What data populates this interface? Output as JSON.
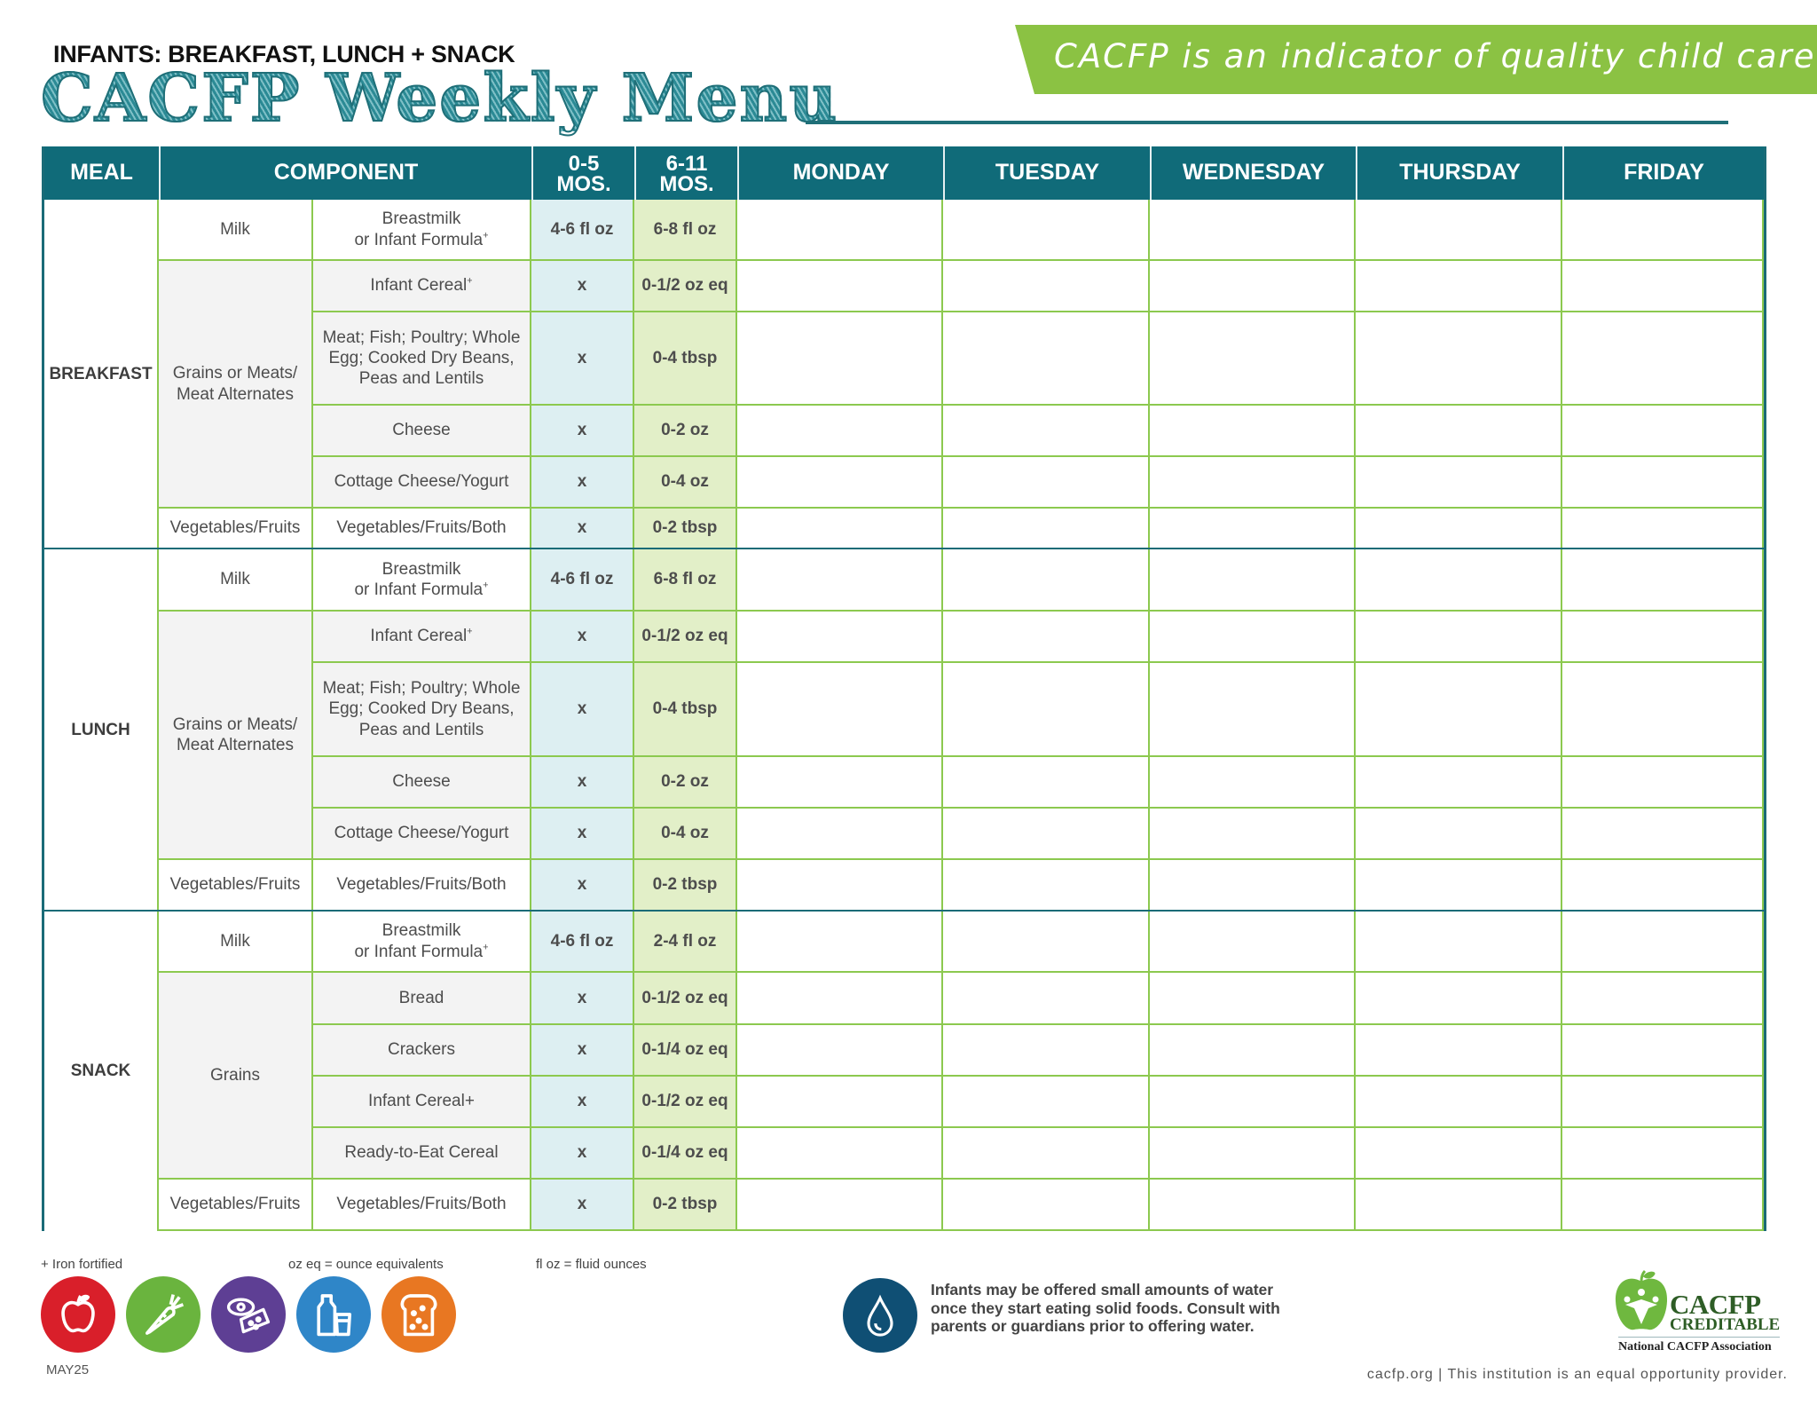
{
  "header": {
    "subtitle": "INFANTS: BREAKFAST, LUNCH + SNACK",
    "title": "CACFP Weekly Menu",
    "banner": "CACFP is an indicator of quality child care."
  },
  "colors": {
    "teal": "#106b79",
    "green_banner": "#8bc243",
    "grid_green": "#8cc94f",
    "age_0_5_bg": "#ddeff2",
    "age_6_11_bg": "#e2efc8"
  },
  "table": {
    "columns": {
      "meal": "MEAL",
      "component": "COMPONENT",
      "age1_top": "0-5",
      "age1_bottom": "MOS.",
      "age2_top": "6-11",
      "age2_bottom": "MOS.",
      "days": [
        "MONDAY",
        "TUESDAY",
        "WEDNESDAY",
        "THURSDAY",
        "FRIDAY"
      ]
    },
    "sections": [
      {
        "meal": "BREAKFAST",
        "groups": [
          {
            "label": "Milk",
            "items": [
              {
                "name": "Breastmilk",
                "name2": "or Infant Formula",
                "sup": "+",
                "age_0_5": "4-6 fl oz",
                "age_6_11": "6-8 fl oz"
              }
            ]
          },
          {
            "label": "Grains or Meats/ Meat Alternates",
            "items": [
              {
                "name": "Infant Cereal",
                "sup": "+",
                "age_0_5": "x",
                "age_6_11": "0-1/2 oz eq"
              },
              {
                "name": "Meat; Fish; Poultry; Whole Egg; Cooked Dry Beans, Peas and Lentils",
                "age_0_5": "x",
                "age_6_11": "0-4 tbsp"
              },
              {
                "name": "Cheese",
                "age_0_5": "x",
                "age_6_11": "0-2 oz"
              },
              {
                "name": "Cottage Cheese/Yogurt",
                "age_0_5": "x",
                "age_6_11": "0-4 oz"
              }
            ]
          },
          {
            "label": "Vegetables/Fruits",
            "items": [
              {
                "name": "Vegetables/Fruits/Both",
                "age_0_5": "x",
                "age_6_11": "0-2 tbsp"
              }
            ]
          }
        ]
      },
      {
        "meal": "LUNCH",
        "groups": [
          {
            "label": "Milk",
            "items": [
              {
                "name": "Breastmilk",
                "name2": "or Infant Formula",
                "sup": "+",
                "age_0_5": "4-6 fl oz",
                "age_6_11": "6-8 fl oz"
              }
            ]
          },
          {
            "label": "Grains or Meats/ Meat Alternates",
            "items": [
              {
                "name": "Infant Cereal",
                "sup": "+",
                "age_0_5": "x",
                "age_6_11": "0-1/2 oz eq"
              },
              {
                "name": "Meat; Fish; Poultry; Whole Egg; Cooked Dry Beans, Peas and Lentils",
                "age_0_5": "x",
                "age_6_11": "0-4 tbsp"
              },
              {
                "name": "Cheese",
                "age_0_5": "x",
                "age_6_11": "0-2 oz"
              },
              {
                "name": "Cottage Cheese/Yogurt",
                "age_0_5": "x",
                "age_6_11": "0-4 oz"
              }
            ]
          },
          {
            "label": "Vegetables/Fruits",
            "items": [
              {
                "name": "Vegetables/Fruits/Both",
                "age_0_5": "x",
                "age_6_11": "0-2 tbsp"
              }
            ]
          }
        ]
      },
      {
        "meal": "SNACK",
        "groups": [
          {
            "label": "Milk",
            "items": [
              {
                "name": "Breastmilk",
                "name2": "or Infant Formula",
                "sup": "+",
                "age_0_5": "4-6 fl oz",
                "age_6_11": "2-4 fl oz"
              }
            ]
          },
          {
            "label": "Grains",
            "items": [
              {
                "name": "Bread",
                "age_0_5": "x",
                "age_6_11": "0-1/2 oz eq"
              },
              {
                "name": "Crackers",
                "age_0_5": "x",
                "age_6_11": "0-1/4 oz eq"
              },
              {
                "name": "Infant Cereal+",
                "age_0_5": "x",
                "age_6_11": "0-1/2 oz eq"
              },
              {
                "name": "Ready-to-Eat Cereal",
                "age_0_5": "x",
                "age_6_11": "0-1/4 oz eq"
              }
            ]
          },
          {
            "label": "Vegetables/Fruits",
            "items": [
              {
                "name": "Vegetables/Fruits/Both",
                "age_0_5": "x",
                "age_6_11": "0-2 tbsp"
              }
            ]
          }
        ]
      }
    ]
  },
  "footer": {
    "legend_iron": "+ Iron fortified",
    "legend_oz": "oz eq = ounce equivalents",
    "legend_floz": "fl oz = fluid ounces",
    "food_icons": [
      "apple-icon",
      "carrot-icon",
      "meat-cheese-icon",
      "milk-icon",
      "bread-icon"
    ],
    "version": "MAY25",
    "water_note": "Infants may be offered small amounts of water once they start eating solid foods. Consult with parents or guardians prior to offering water.",
    "logo_main": "CACFP",
    "logo_sub": "CREDITABLE",
    "logo_org": "National CACFP Association",
    "disclaimer": "cacfp.org | This institution is an equal opportunity provider."
  }
}
